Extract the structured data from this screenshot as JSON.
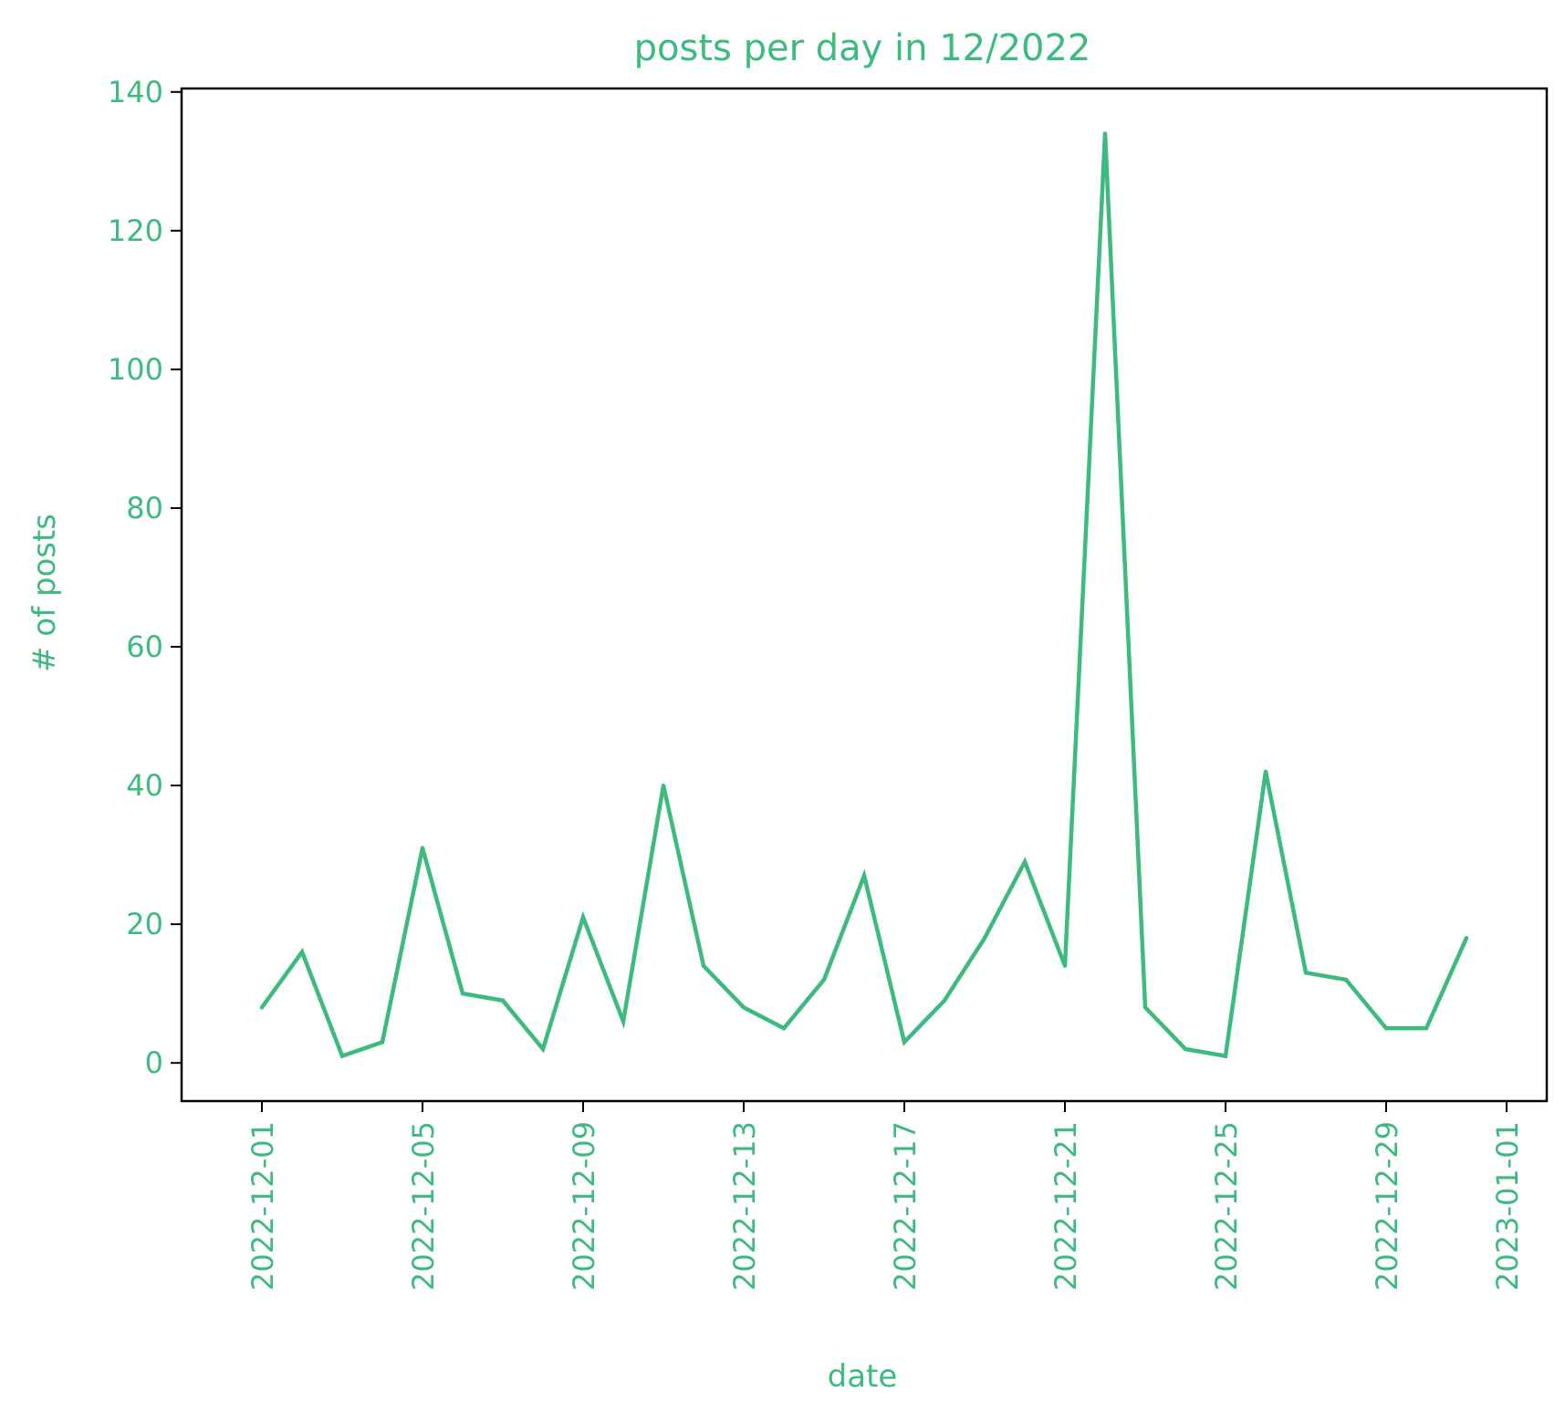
{
  "chart_data": {
    "type": "line",
    "title": "posts per day in 12/2022",
    "xlabel": "date",
    "ylabel": "# of posts",
    "color": "#3dba7e",
    "grid": false,
    "ylim": [
      -5.5,
      140.5
    ],
    "yticks": [
      0,
      20,
      40,
      60,
      80,
      100,
      120,
      140
    ],
    "xlim": [
      "2022-11-29",
      "2023-01-02"
    ],
    "xticks": [
      "2022-12-01",
      "2022-12-05",
      "2022-12-09",
      "2022-12-13",
      "2022-12-17",
      "2022-12-21",
      "2022-12-25",
      "2022-12-29",
      "2023-01-01"
    ],
    "series": [
      {
        "x": [
          "2022-12-01",
          "2022-12-02",
          "2022-12-03",
          "2022-12-04",
          "2022-12-05",
          "2022-12-06",
          "2022-12-07",
          "2022-12-08",
          "2022-12-09",
          "2022-12-10",
          "2022-12-11",
          "2022-12-12",
          "2022-12-13",
          "2022-12-14",
          "2022-12-15",
          "2022-12-16",
          "2022-12-17",
          "2022-12-18",
          "2022-12-19",
          "2022-12-20",
          "2022-12-21",
          "2022-12-22",
          "2022-12-23",
          "2022-12-24",
          "2022-12-25",
          "2022-12-26",
          "2022-12-27",
          "2022-12-28",
          "2022-12-29",
          "2022-12-30",
          "2022-12-31"
        ],
        "values": [
          8,
          16,
          1,
          3,
          31,
          10,
          9,
          2,
          21,
          6,
          40,
          14,
          8,
          5,
          12,
          27,
          3,
          9,
          18,
          29,
          14,
          134,
          8,
          2,
          1,
          42,
          13,
          12,
          5,
          5,
          18
        ]
      }
    ]
  }
}
